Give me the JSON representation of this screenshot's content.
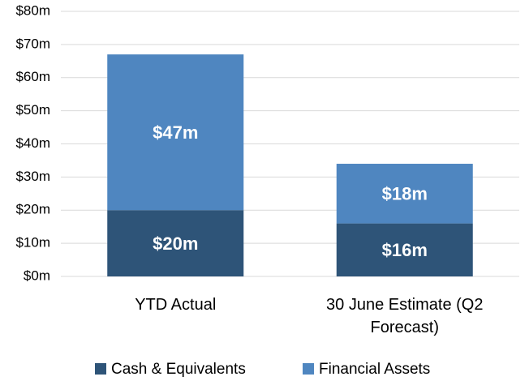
{
  "chart_data": {
    "type": "stacked_bar",
    "categories": [
      "YTD Actual",
      "30 June Estimate (Q2 Forecast)"
    ],
    "series": [
      {
        "name": "Cash & Equivalents",
        "color": "#2e5478",
        "values": [
          20,
          16
        ],
        "value_labels": [
          "$20m",
          "$16m"
        ]
      },
      {
        "name": "Financial Assets",
        "color": "#4f86c0",
        "values": [
          47,
          18
        ],
        "value_labels": [
          "$47m",
          "$18m"
        ]
      }
    ],
    "ylim": [
      0,
      80
    ],
    "yticks": [
      {
        "value": 0,
        "label": "$0m"
      },
      {
        "value": 10,
        "label": "$10m"
      },
      {
        "value": 20,
        "label": "$20m"
      },
      {
        "value": 30,
        "label": "$30m"
      },
      {
        "value": 40,
        "label": "$40m"
      },
      {
        "value": 50,
        "label": "$50m"
      },
      {
        "value": 60,
        "label": "$60m"
      },
      {
        "value": 70,
        "label": "$70m"
      },
      {
        "value": 80,
        "label": "$80m"
      }
    ],
    "grid": true,
    "legend": "bottom"
  }
}
